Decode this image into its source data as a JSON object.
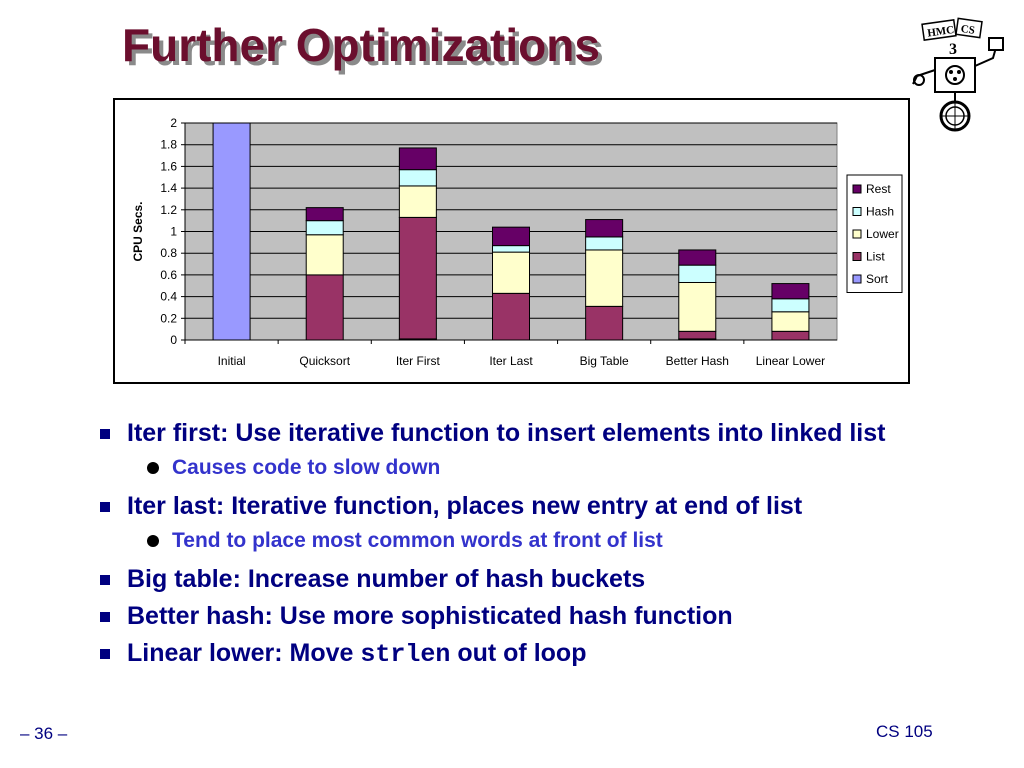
{
  "slide": {
    "title": "Further Optimizations",
    "logo_text": [
      "HMC",
      "CS"
    ],
    "page_number": "– 36 –",
    "course": "CS 105"
  },
  "bullets": [
    {
      "text": "Iter first: Use iterative function to insert elements into linked list",
      "sub": [
        "Causes code to slow down"
      ]
    },
    {
      "text": "Iter last: Iterative function, places new entry at end of list",
      "sub": [
        "Tend to place most common words at front of list"
      ]
    },
    {
      "text": "Big table: Increase number of hash buckets",
      "sub": []
    },
    {
      "text": "Better hash: Use more sophisticated hash function",
      "sub": []
    },
    {
      "text_before": "Linear lower: Move ",
      "code": "strlen",
      "text_after": " out of loop",
      "sub": []
    }
  ],
  "chart_data": {
    "type": "bar",
    "stacked": true,
    "categories": [
      "Initial",
      "Quicksort",
      "Iter First",
      "Iter Last",
      "Big Table",
      "Better Hash",
      "Linear Lower"
    ],
    "series": [
      {
        "name": "Sort",
        "color": "#9999ff",
        "values": [
          2.0,
          0,
          0.01,
          0,
          0,
          0.01,
          0
        ]
      },
      {
        "name": "List",
        "color": "#993366",
        "values": [
          0,
          0.6,
          1.12,
          0.43,
          0.31,
          0.07,
          0.08
        ]
      },
      {
        "name": "Lower",
        "color": "#ffffcc",
        "values": [
          0,
          0.37,
          0.29,
          0.38,
          0.52,
          0.45,
          0.18
        ]
      },
      {
        "name": "Hash",
        "color": "#ccffff",
        "values": [
          0,
          0.13,
          0.15,
          0.06,
          0.12,
          0.16,
          0.12
        ]
      },
      {
        "name": "Rest",
        "color": "#660066",
        "values": [
          0,
          0.12,
          0.2,
          0.17,
          0.16,
          0.14,
          0.14
        ]
      }
    ],
    "ylabel": "CPU Secs.",
    "ylim": [
      0,
      2
    ],
    "yticks": [
      "0",
      "0.2",
      "0.4",
      "0.6",
      "0.8",
      "1",
      "1.2",
      "1.4",
      "1.6",
      "1.8",
      "2"
    ],
    "legend_order": [
      "Rest",
      "Hash",
      "Lower",
      "List",
      "Sort"
    ],
    "legend_position": "right",
    "grid": true,
    "plot_background": "#c0c0c0"
  }
}
